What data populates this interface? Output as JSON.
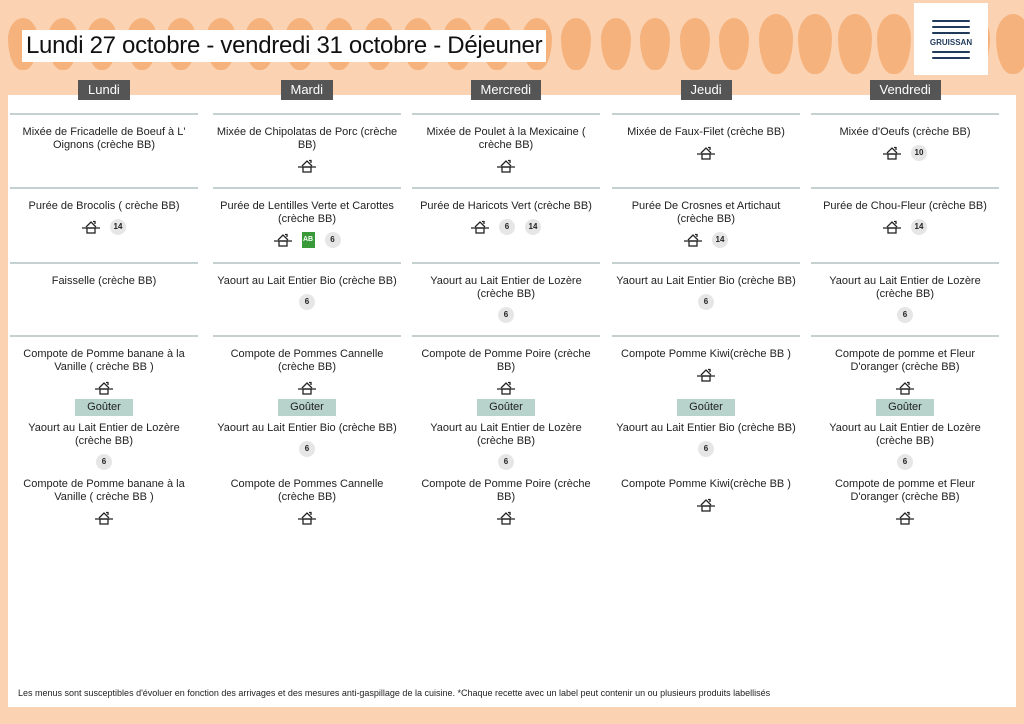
{
  "title": "Lundi 27 octobre - vendredi 31 octobre  - Déjeuner",
  "logo": {
    "text": "GRUISSAN",
    "sub": "JEAN BRUN"
  },
  "colors": {
    "background": "#fbd3b3",
    "pear": "#f6b27c",
    "day_tab": "#555555",
    "gouter": "#b7d3cc",
    "bio": "#3a9a3a"
  },
  "gouter_label": "Goûter",
  "days": [
    {
      "name": "Lundi",
      "items": [
        {
          "name": "Mixée de Fricadelle de Boeuf à L' Oignons (crèche BB)",
          "house": false,
          "bio": false,
          "badges": []
        },
        {
          "name": "Purée de Brocolis ( crèche BB)",
          "house": true,
          "bio": false,
          "badges": [
            "14"
          ]
        },
        {
          "name": "Faisselle (crèche BB)",
          "house": false,
          "bio": false,
          "badges": []
        },
        {
          "name": "Compote de Pomme banane à la Vanille ( crèche BB )",
          "house": true,
          "bio": false,
          "badges": []
        }
      ],
      "gouter": [
        {
          "name": "Yaourt au Lait Entier de Lozère (crèche BB)",
          "house": false,
          "bio": false,
          "badges": [
            "6"
          ]
        },
        {
          "name": "Compote de Pomme banane à la Vanille ( crèche BB )",
          "house": true,
          "bio": false,
          "badges": []
        }
      ]
    },
    {
      "name": "Mardi",
      "items": [
        {
          "name": "Mixée de Chipolatas de Porc (crèche BB)",
          "house": true,
          "bio": false,
          "badges": []
        },
        {
          "name": "Purée de Lentilles Verte et Carottes (crèche BB)",
          "house": true,
          "bio": true,
          "badges": [
            "6"
          ]
        },
        {
          "name": "Yaourt au Lait Entier Bio  (crèche BB)",
          "house": false,
          "bio": false,
          "badges": [
            "6"
          ]
        },
        {
          "name": "Compote de Pommes Cannelle (crèche BB)",
          "house": true,
          "bio": false,
          "badges": []
        }
      ],
      "gouter": [
        {
          "name": "Yaourt au Lait Entier Bio  (crèche BB)",
          "house": false,
          "bio": false,
          "badges": [
            "6"
          ]
        },
        {
          "name": "Compote de Pommes Cannelle (crèche BB)",
          "house": true,
          "bio": false,
          "badges": []
        }
      ]
    },
    {
      "name": "Mercredi",
      "items": [
        {
          "name": "Mixée de Poulet à la Mexicaine ( crèche BB)",
          "house": true,
          "bio": false,
          "badges": []
        },
        {
          "name": "Purée de Haricots Vert (crèche BB)",
          "house": true,
          "bio": false,
          "badges": [
            "6",
            "14"
          ]
        },
        {
          "name": "Yaourt au Lait Entier de Lozère (crèche BB)",
          "house": false,
          "bio": false,
          "badges": [
            "6"
          ]
        },
        {
          "name": "Compote de Pomme Poire (crèche BB)",
          "house": true,
          "bio": false,
          "badges": []
        }
      ],
      "gouter": [
        {
          "name": "Yaourt au Lait Entier de Lozère (crèche BB)",
          "house": false,
          "bio": false,
          "badges": [
            "6"
          ]
        },
        {
          "name": "Compote de Pomme Poire (crèche BB)",
          "house": true,
          "bio": false,
          "badges": []
        }
      ]
    },
    {
      "name": "Jeudi",
      "items": [
        {
          "name": "Mixée de Faux-Filet (crèche BB)",
          "house": true,
          "bio": false,
          "badges": []
        },
        {
          "name": "Purée De Crosnes et Artichaut (crèche BB)",
          "house": true,
          "bio": false,
          "badges": [
            "14"
          ]
        },
        {
          "name": "Yaourt au Lait Entier Bio  (crèche BB)",
          "house": false,
          "bio": false,
          "badges": [
            "6"
          ]
        },
        {
          "name": "Compote Pomme Kiwi(crèche BB )",
          "house": true,
          "bio": false,
          "badges": []
        }
      ],
      "gouter": [
        {
          "name": "Yaourt au Lait Entier Bio  (crèche BB)",
          "house": false,
          "bio": false,
          "badges": [
            "6"
          ]
        },
        {
          "name": "Compote Pomme Kiwi(crèche BB )",
          "house": true,
          "bio": false,
          "badges": []
        }
      ]
    },
    {
      "name": "Vendredi",
      "items": [
        {
          "name": "Mixée d'Oeufs (crèche BB)",
          "house": true,
          "bio": false,
          "badges": [
            "10"
          ]
        },
        {
          "name": "Purée de Chou-Fleur (crèche BB)",
          "house": true,
          "bio": false,
          "badges": [
            "14"
          ]
        },
        {
          "name": "Yaourt au Lait Entier de Lozère (crèche BB)",
          "house": false,
          "bio": false,
          "badges": [
            "6"
          ]
        },
        {
          "name": "Compote de pomme et Fleur D'oranger (crèche BB)",
          "house": true,
          "bio": false,
          "badges": []
        }
      ],
      "gouter": [
        {
          "name": "Yaourt au Lait Entier de Lozère (crèche BB)",
          "house": false,
          "bio": false,
          "badges": [
            "6"
          ]
        },
        {
          "name": "Compote de pomme et Fleur D'oranger (crèche BB)",
          "house": true,
          "bio": false,
          "badges": []
        }
      ]
    }
  ],
  "bio_label": "AB",
  "footer": "Les menus sont susceptibles d'évoluer en fonction des arrivages et des mesures anti-gaspillage de la cuisine. *Chaque recette avec un label peut contenir un ou plusieurs produits labellisés"
}
